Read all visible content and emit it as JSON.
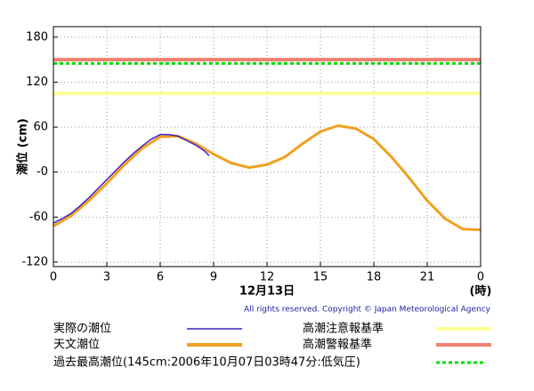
{
  "chart_data": {
    "type": "line",
    "ylabel": "潮位 (cm)",
    "xlabel": "12月13日",
    "xunit": "(時)",
    "copyright": "All rights reserved. Copyright © Japan Meteorological Agency",
    "xlim": [
      0,
      24
    ],
    "xticks": [
      0,
      3,
      6,
      9,
      12,
      15,
      18,
      21,
      {
        "value": 24,
        "label": "0"
      }
    ],
    "ylim": [
      -126,
      194
    ],
    "yticks": [
      180,
      120,
      60,
      {
        "value": 0,
        "label": "-0"
      },
      -60,
      -120
    ],
    "grid": true,
    "series": [
      {
        "name": "実際の潮位",
        "color": "#3a20c0",
        "x": [
          0,
          0.5,
          1,
          1.5,
          2,
          2.5,
          3,
          3.5,
          4,
          4.5,
          5,
          5.5,
          6,
          6.5,
          7,
          7.5,
          8,
          8.5,
          8.75
        ],
        "values": [
          -68,
          -62,
          -55,
          -45,
          -34,
          -22,
          -10,
          2,
          14,
          25,
          35,
          44,
          50,
          50,
          48,
          42,
          36,
          28,
          22
        ]
      },
      {
        "name": "天文潮位",
        "color": "#f0a020",
        "x": [
          0,
          1,
          2,
          3,
          4,
          5,
          6,
          7,
          8,
          9,
          10,
          11,
          12,
          13,
          14,
          15,
          16,
          17,
          18,
          19,
          20,
          21,
          22,
          23,
          24
        ],
        "values": [
          -72,
          -58,
          -38,
          -15,
          10,
          32,
          47,
          48,
          38,
          24,
          12,
          6,
          10,
          20,
          38,
          54,
          62,
          58,
          44,
          20,
          -8,
          -38,
          -62,
          -76,
          -77
        ]
      }
    ],
    "reference_lines": [
      {
        "name": "高潮注意報基準",
        "value": 105,
        "color": "#ffff99",
        "dashed": false
      },
      {
        "name": "高潮警報基準",
        "value": 150,
        "color": "#f08070",
        "dashed": false
      },
      {
        "name": "過去最高潮位(145cm:2006年10月07日03時47分:低気圧)",
        "value": 145,
        "color": "#00dd00",
        "dashed": true
      }
    ]
  }
}
